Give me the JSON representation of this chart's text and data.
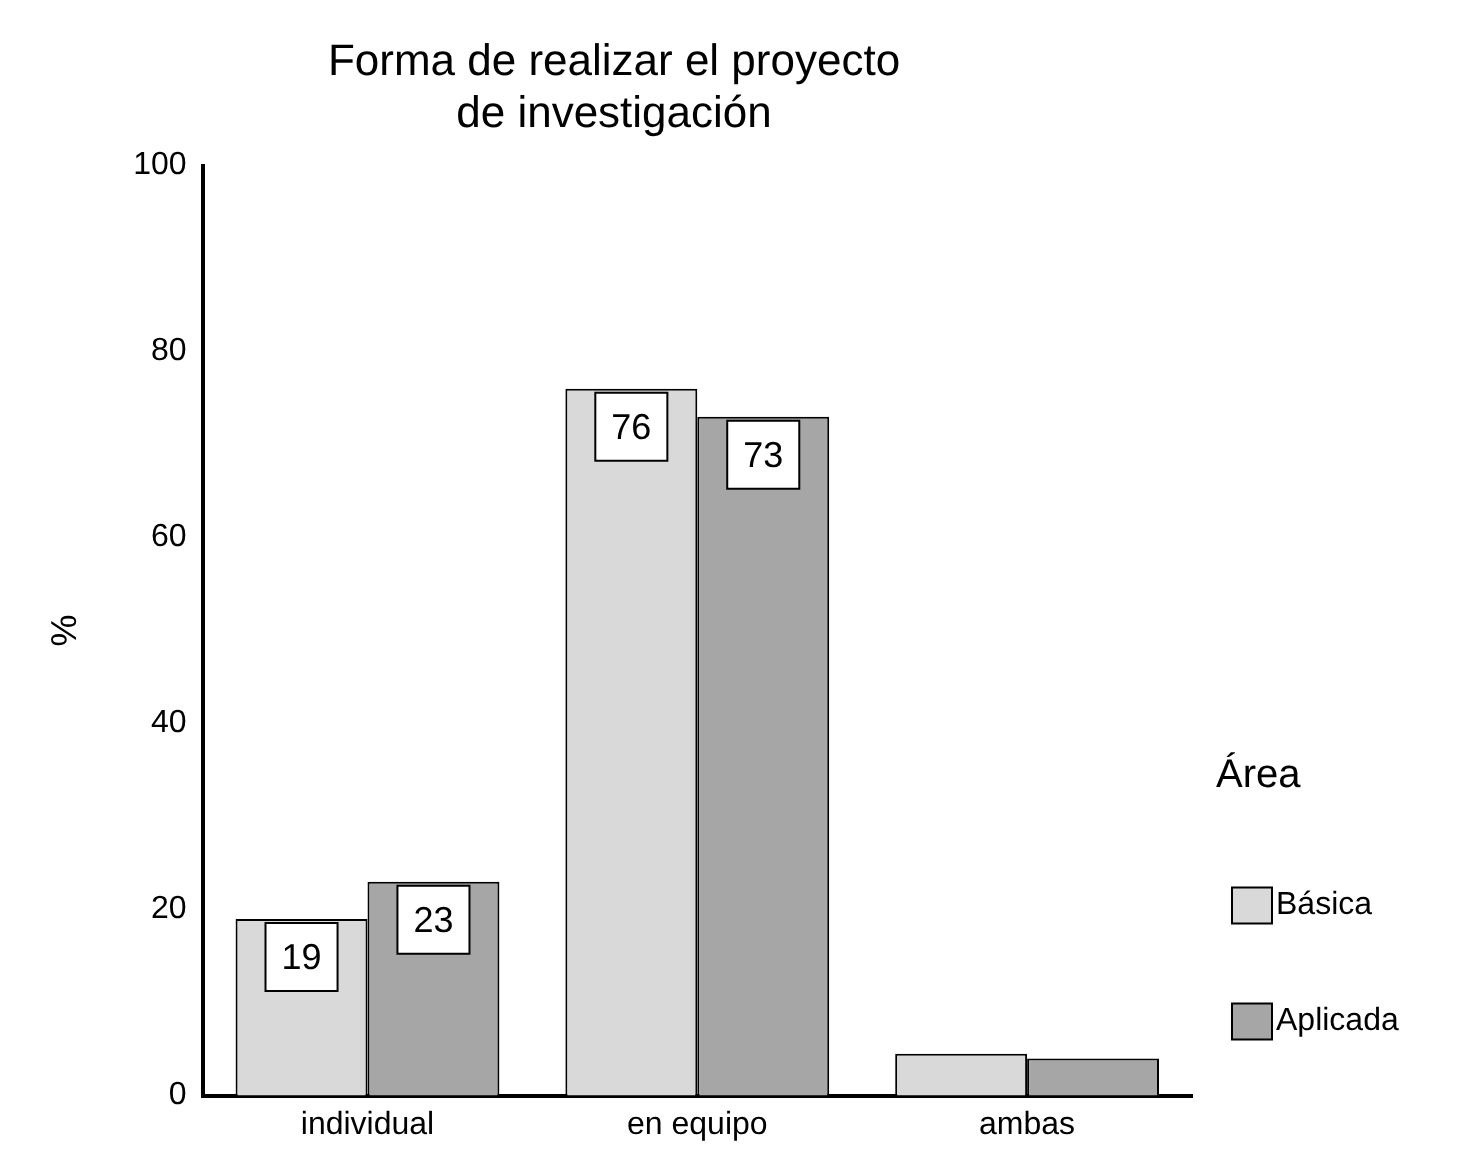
{
  "chart_data": {
    "type": "bar",
    "title": [
      "Forma de realizar el proyecto",
      "de investigación"
    ],
    "ylabel": "%",
    "legend_title": "Área",
    "categories": [
      "individual",
      "en equipo",
      "ambas"
    ],
    "series": [
      {
        "name": "Básica",
        "color": "#d9d9d9",
        "values": [
          19,
          76,
          4.5
        ],
        "value_labels": [
          "19",
          "76",
          null
        ]
      },
      {
        "name": "Aplicada",
        "color": "#a6a6a6",
        "values": [
          23,
          73,
          4
        ],
        "value_labels": [
          "23",
          "73",
          null
        ]
      }
    ],
    "ylim": [
      0,
      100
    ],
    "yticks": [
      0,
      20,
      40,
      60,
      80,
      100
    ],
    "grid": false,
    "legend": "right"
  }
}
